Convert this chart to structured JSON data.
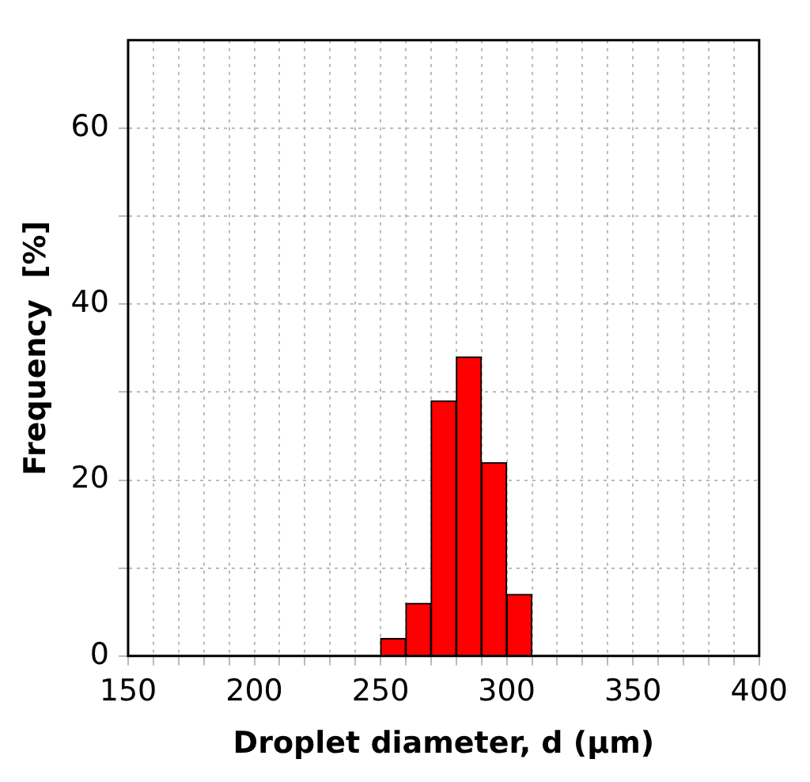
{
  "chart_data": {
    "type": "histogram",
    "xlabel": "Droplet diameter, d (μm)",
    "ylabel": "Frequency  [%]",
    "bins": [
      250,
      260,
      270,
      280,
      290,
      300,
      310
    ],
    "values": [
      2,
      6,
      29,
      34,
      22,
      7
    ],
    "color": "#ff0000",
    "xlim": [
      150,
      400
    ],
    "xticks": [
      150,
      {
        "value": 160,
        "label": null
      },
      {
        "value": 170,
        "label": null
      },
      {
        "value": 180,
        "label": null
      },
      {
        "value": 190,
        "label": null
      },
      200,
      {
        "value": 210,
        "label": null
      },
      {
        "value": 220,
        "label": null
      },
      {
        "value": 230,
        "label": null
      },
      {
        "value": 240,
        "label": null
      },
      250,
      {
        "value": 260,
        "label": null
      },
      {
        "value": 270,
        "label": null
      },
      {
        "value": 280,
        "label": null
      },
      {
        "value": 290,
        "label": null
      },
      300,
      {
        "value": 310,
        "label": null
      },
      {
        "value": 320,
        "label": null
      },
      {
        "value": 330,
        "label": null
      },
      {
        "value": 340,
        "label": null
      },
      350,
      {
        "value": 360,
        "label": null
      },
      {
        "value": 370,
        "label": null
      },
      {
        "value": 380,
        "label": null
      },
      {
        "value": 390,
        "label": null
      },
      400
    ],
    "ylim": [
      0,
      70
    ],
    "yticks": [
      0,
      {
        "value": 10,
        "label": null
      },
      20,
      {
        "value": 30,
        "label": null
      },
      40,
      {
        "value": 50,
        "label": null
      },
      60
    ],
    "grid": true,
    "legend": false
  }
}
